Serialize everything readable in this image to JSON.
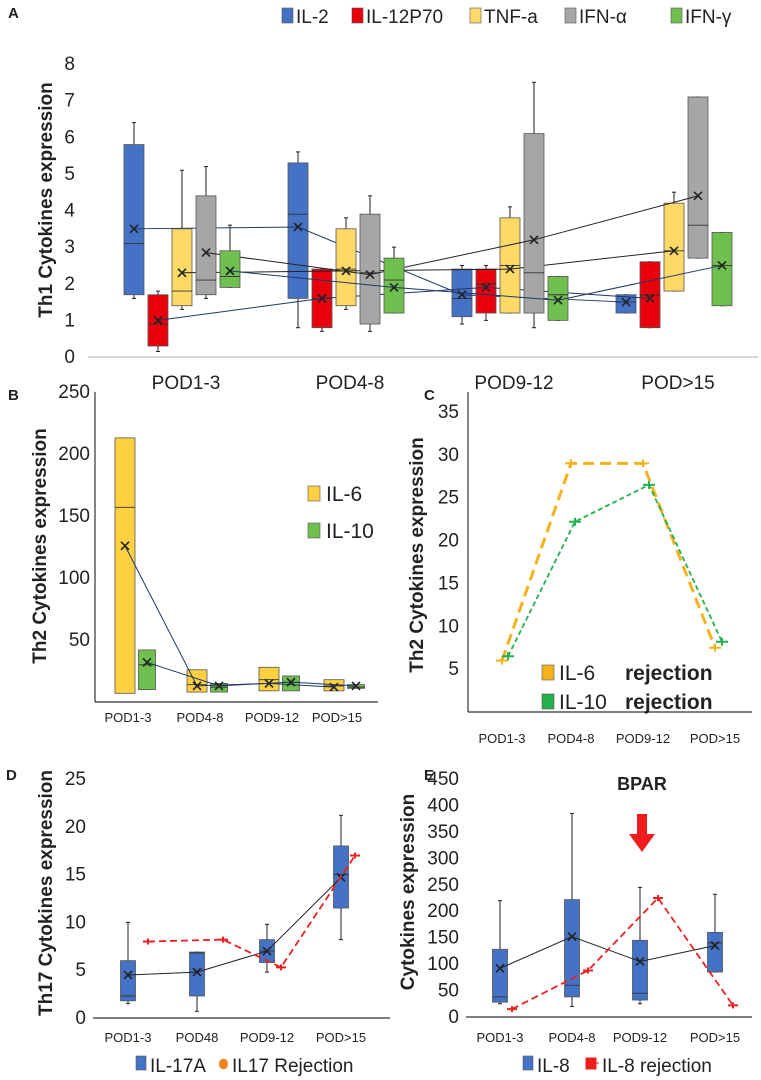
{
  "colors": {
    "il2": "#4472c4",
    "il12": "#e8000d",
    "tnf": "#ffd966",
    "ifna": "#a6a6a6",
    "ifng": "#70c050",
    "il6": "#ffd040",
    "il10": "#70c050",
    "il6_rej": "#f5b31b",
    "il10_rej": "#22b14c",
    "rej_red": "#ee2020",
    "blue": "#4472c4",
    "meanline": "#1f3864",
    "black": "#222222"
  },
  "chart_data": [
    {
      "panel": "A",
      "type": "box",
      "ylabel": "Th1 Cytokines expression",
      "ylim": [
        0,
        8
      ],
      "yticks": [
        0,
        1,
        2,
        3,
        4,
        5,
        6,
        7,
        8
      ],
      "categories": [
        "POD1-3",
        "POD4-8",
        "POD9-12",
        "POD>15"
      ],
      "legend": [
        "IL-2",
        "IL-12P70",
        "TNF-a",
        "IFN-α",
        "IFN-γ"
      ],
      "series": [
        {
          "name": "IL-2",
          "color_key": "il2",
          "line": "blue",
          "boxes": [
            {
              "min": 1.6,
              "q1": 1.7,
              "median": 3.1,
              "q3": 5.8,
              "max": 6.4,
              "mean": 3.5
            },
            {
              "min": 0.8,
              "q1": 1.6,
              "median": 3.9,
              "q3": 5.3,
              "max": 5.6,
              "mean": 3.55
            },
            {
              "min": 0.9,
              "q1": 1.1,
              "median": 1.6,
              "q3": 2.4,
              "max": 2.5,
              "mean": 1.7
            },
            {
              "min": 1.2,
              "q1": 1.2,
              "median": 1.5,
              "q3": 1.7,
              "max": 1.7,
              "mean": 1.5
            }
          ]
        },
        {
          "name": "IL-12P70",
          "color_key": "il12",
          "line": "blue",
          "boxes": [
            {
              "min": 0.15,
              "q1": 0.3,
              "median": 0.9,
              "q3": 1.7,
              "max": 1.8,
              "mean": 1.0
            },
            {
              "min": 0.7,
              "q1": 0.8,
              "median": 1.6,
              "q3": 2.4,
              "max": 2.4,
              "mean": 1.6
            },
            {
              "min": 1.0,
              "q1": 1.2,
              "median": 2.0,
              "q3": 2.4,
              "max": 2.5,
              "mean": 1.9
            },
            {
              "min": 0.8,
              "q1": 0.8,
              "median": 1.7,
              "q3": 2.6,
              "max": 2.6,
              "mean": 1.6
            }
          ]
        },
        {
          "name": "TNF-a",
          "color_key": "tnf",
          "line": "black",
          "boxes": [
            {
              "min": 1.3,
              "q1": 1.4,
              "median": 1.8,
              "q3": 3.5,
              "max": 5.1,
              "mean": 2.3
            },
            {
              "min": 1.3,
              "q1": 1.4,
              "median": 2.4,
              "q3": 3.5,
              "max": 3.8,
              "mean": 2.35
            },
            {
              "min": 1.2,
              "q1": 1.2,
              "median": 2.5,
              "q3": 3.8,
              "max": 4.1,
              "mean": 2.4
            },
            {
              "min": 1.8,
              "q1": 1.8,
              "median": 2.9,
              "q3": 4.2,
              "max": 4.5,
              "mean": 2.9
            }
          ]
        },
        {
          "name": "IFN-α",
          "color_key": "ifna",
          "line": "black",
          "boxes": [
            {
              "min": 1.6,
              "q1": 1.7,
              "median": 2.1,
              "q3": 4.4,
              "max": 5.2,
              "mean": 2.85
            },
            {
              "min": 0.7,
              "q1": 0.9,
              "median": 2.3,
              "q3": 3.9,
              "max": 4.4,
              "mean": 2.25
            },
            {
              "min": 0.8,
              "q1": 1.2,
              "median": 2.3,
              "q3": 6.1,
              "max": 7.5,
              "mean": 3.2
            },
            {
              "min": 2.7,
              "q1": 2.7,
              "median": 3.6,
              "q3": 7.1,
              "max": 7.1,
              "mean": 4.4
            }
          ]
        },
        {
          "name": "IFN-γ",
          "color_key": "ifng",
          "line": "blue",
          "boxes": [
            {
              "min": 1.9,
              "q1": 1.9,
              "median": 2.2,
              "q3": 2.9,
              "max": 3.6,
              "mean": 2.35
            },
            {
              "min": 1.2,
              "q1": 1.2,
              "median": 2.1,
              "q3": 2.7,
              "max": 3.0,
              "mean": 1.9
            },
            {
              "min": 1.0,
              "q1": 1.0,
              "median": 1.7,
              "q3": 2.2,
              "max": 2.2,
              "mean": 1.55
            },
            {
              "min": 1.4,
              "q1": 1.4,
              "median": 2.5,
              "q3": 3.4,
              "max": 3.4,
              "mean": 2.5
            }
          ]
        }
      ]
    },
    {
      "panel": "B",
      "type": "box",
      "ylabel": "Th2 Cytokines expression",
      "ylim": [
        0,
        250
      ],
      "yticks": [
        50,
        100,
        150,
        200,
        250
      ],
      "categories": [
        "POD1-3",
        "POD4-8",
        "POD9-12",
        "POD>15"
      ],
      "legend": [
        "IL-6",
        "IL-10"
      ],
      "series": [
        {
          "name": "IL-6",
          "color_key": "il6",
          "boxes": [
            {
              "q1": 7,
              "median": 157,
              "q3": 213,
              "mean": 126
            },
            {
              "q1": 8,
              "median": 14,
              "q3": 26,
              "mean": 13
            },
            {
              "q1": 9,
              "median": 18,
              "q3": 28,
              "mean": 15
            },
            {
              "q1": 9,
              "median": 13,
              "q3": 18,
              "mean": 12
            }
          ]
        },
        {
          "name": "IL-10",
          "color_key": "il10",
          "boxes": [
            {
              "q1": 10,
              "median": 30,
              "q3": 42,
              "mean": 32
            },
            {
              "q1": 8,
              "median": 12,
              "q3": 15,
              "mean": 13
            },
            {
              "q1": 9,
              "median": 16,
              "q3": 21,
              "mean": 16
            },
            {
              "q1": 11,
              "median": 12,
              "q3": 14,
              "mean": 13
            }
          ]
        }
      ]
    },
    {
      "panel": "C",
      "type": "line",
      "ylabel": "Th2 Cytokines expression",
      "ylim": [
        0,
        35
      ],
      "yticks": [
        5,
        10,
        15,
        20,
        25,
        30,
        35
      ],
      "categories": [
        "POD1-3",
        "POD4-8",
        "POD9-12",
        "POD>15"
      ],
      "legend": [
        {
          "name": "IL-6",
          "suffix": "rejection"
        },
        {
          "name": "IL-10",
          "suffix": "rejection"
        }
      ],
      "series": [
        {
          "name": "IL-6 rejection",
          "color_key": "il6_rej",
          "values": [
            6,
            29,
            29,
            7.5
          ]
        },
        {
          "name": "IL-10 rejection",
          "color_key": "il10_rej",
          "values": [
            6.5,
            22.2,
            26.5,
            8.2
          ]
        }
      ]
    },
    {
      "panel": "D",
      "type": "box",
      "ylabel": "Th17 Cytokines expression",
      "ylim": [
        0,
        25
      ],
      "yticks": [
        0,
        5,
        10,
        15,
        20,
        25
      ],
      "categories": [
        "POD1-3",
        "POD48",
        "POD9-12",
        "POD>15"
      ],
      "legend": [
        "IL-17A",
        "IL17 Rejection"
      ],
      "series": [
        {
          "name": "IL-17A",
          "color_key": "blue",
          "boxes": [
            {
              "min": 1.5,
              "q1": 1.8,
              "median": 2.3,
              "q3": 6.0,
              "max": 10.0,
              "mean": 4.5
            },
            {
              "min": 0.7,
              "q1": 2.3,
              "median": 6.8,
              "q3": 6.9,
              "max": 6.9,
              "mean": 4.8
            },
            {
              "min": 4.8,
              "q1": 5.8,
              "median": 7.0,
              "q3": 8.2,
              "max": 9.8,
              "mean": 7.0
            },
            {
              "min": 8.2,
              "q1": 11.5,
              "median": 15.0,
              "q3": 18.0,
              "max": 21.2,
              "mean": 14.7
            }
          ]
        },
        {
          "name": "IL17 Rejection",
          "color_key": "rej_red",
          "values": [
            8.0,
            8.2,
            5.3,
            17.0
          ]
        }
      ]
    },
    {
      "panel": "E",
      "type": "box",
      "ylabel": "Cytokines expression",
      "ylim": [
        0,
        450
      ],
      "yticks": [
        0,
        50,
        100,
        150,
        200,
        250,
        300,
        350,
        400,
        450
      ],
      "categories": [
        "POD1-3",
        "POD4-8",
        "POD9-12",
        "POD>15"
      ],
      "legend": [
        "IL-8",
        "IL-8 rejection"
      ],
      "annotation": "BPAR",
      "series": [
        {
          "name": "IL-8",
          "color_key": "blue",
          "boxes": [
            {
              "min": 25,
              "q1": 28,
              "median": 38,
              "q3": 128,
              "max": 220,
              "mean": 92
            },
            {
              "min": 20,
              "q1": 38,
              "median": 60,
              "q3": 222,
              "max": 385,
              "mean": 152
            },
            {
              "min": 25,
              "q1": 32,
              "median": 45,
              "q3": 145,
              "max": 245,
              "mean": 105
            },
            {
              "min": 85,
              "q1": 85,
              "median": 140,
              "q3": 160,
              "max": 232,
              "mean": 135
            }
          ]
        },
        {
          "name": "IL-8 rejection",
          "color_key": "rej_red",
          "values": [
            15,
            88,
            225,
            22
          ]
        }
      ]
    }
  ]
}
